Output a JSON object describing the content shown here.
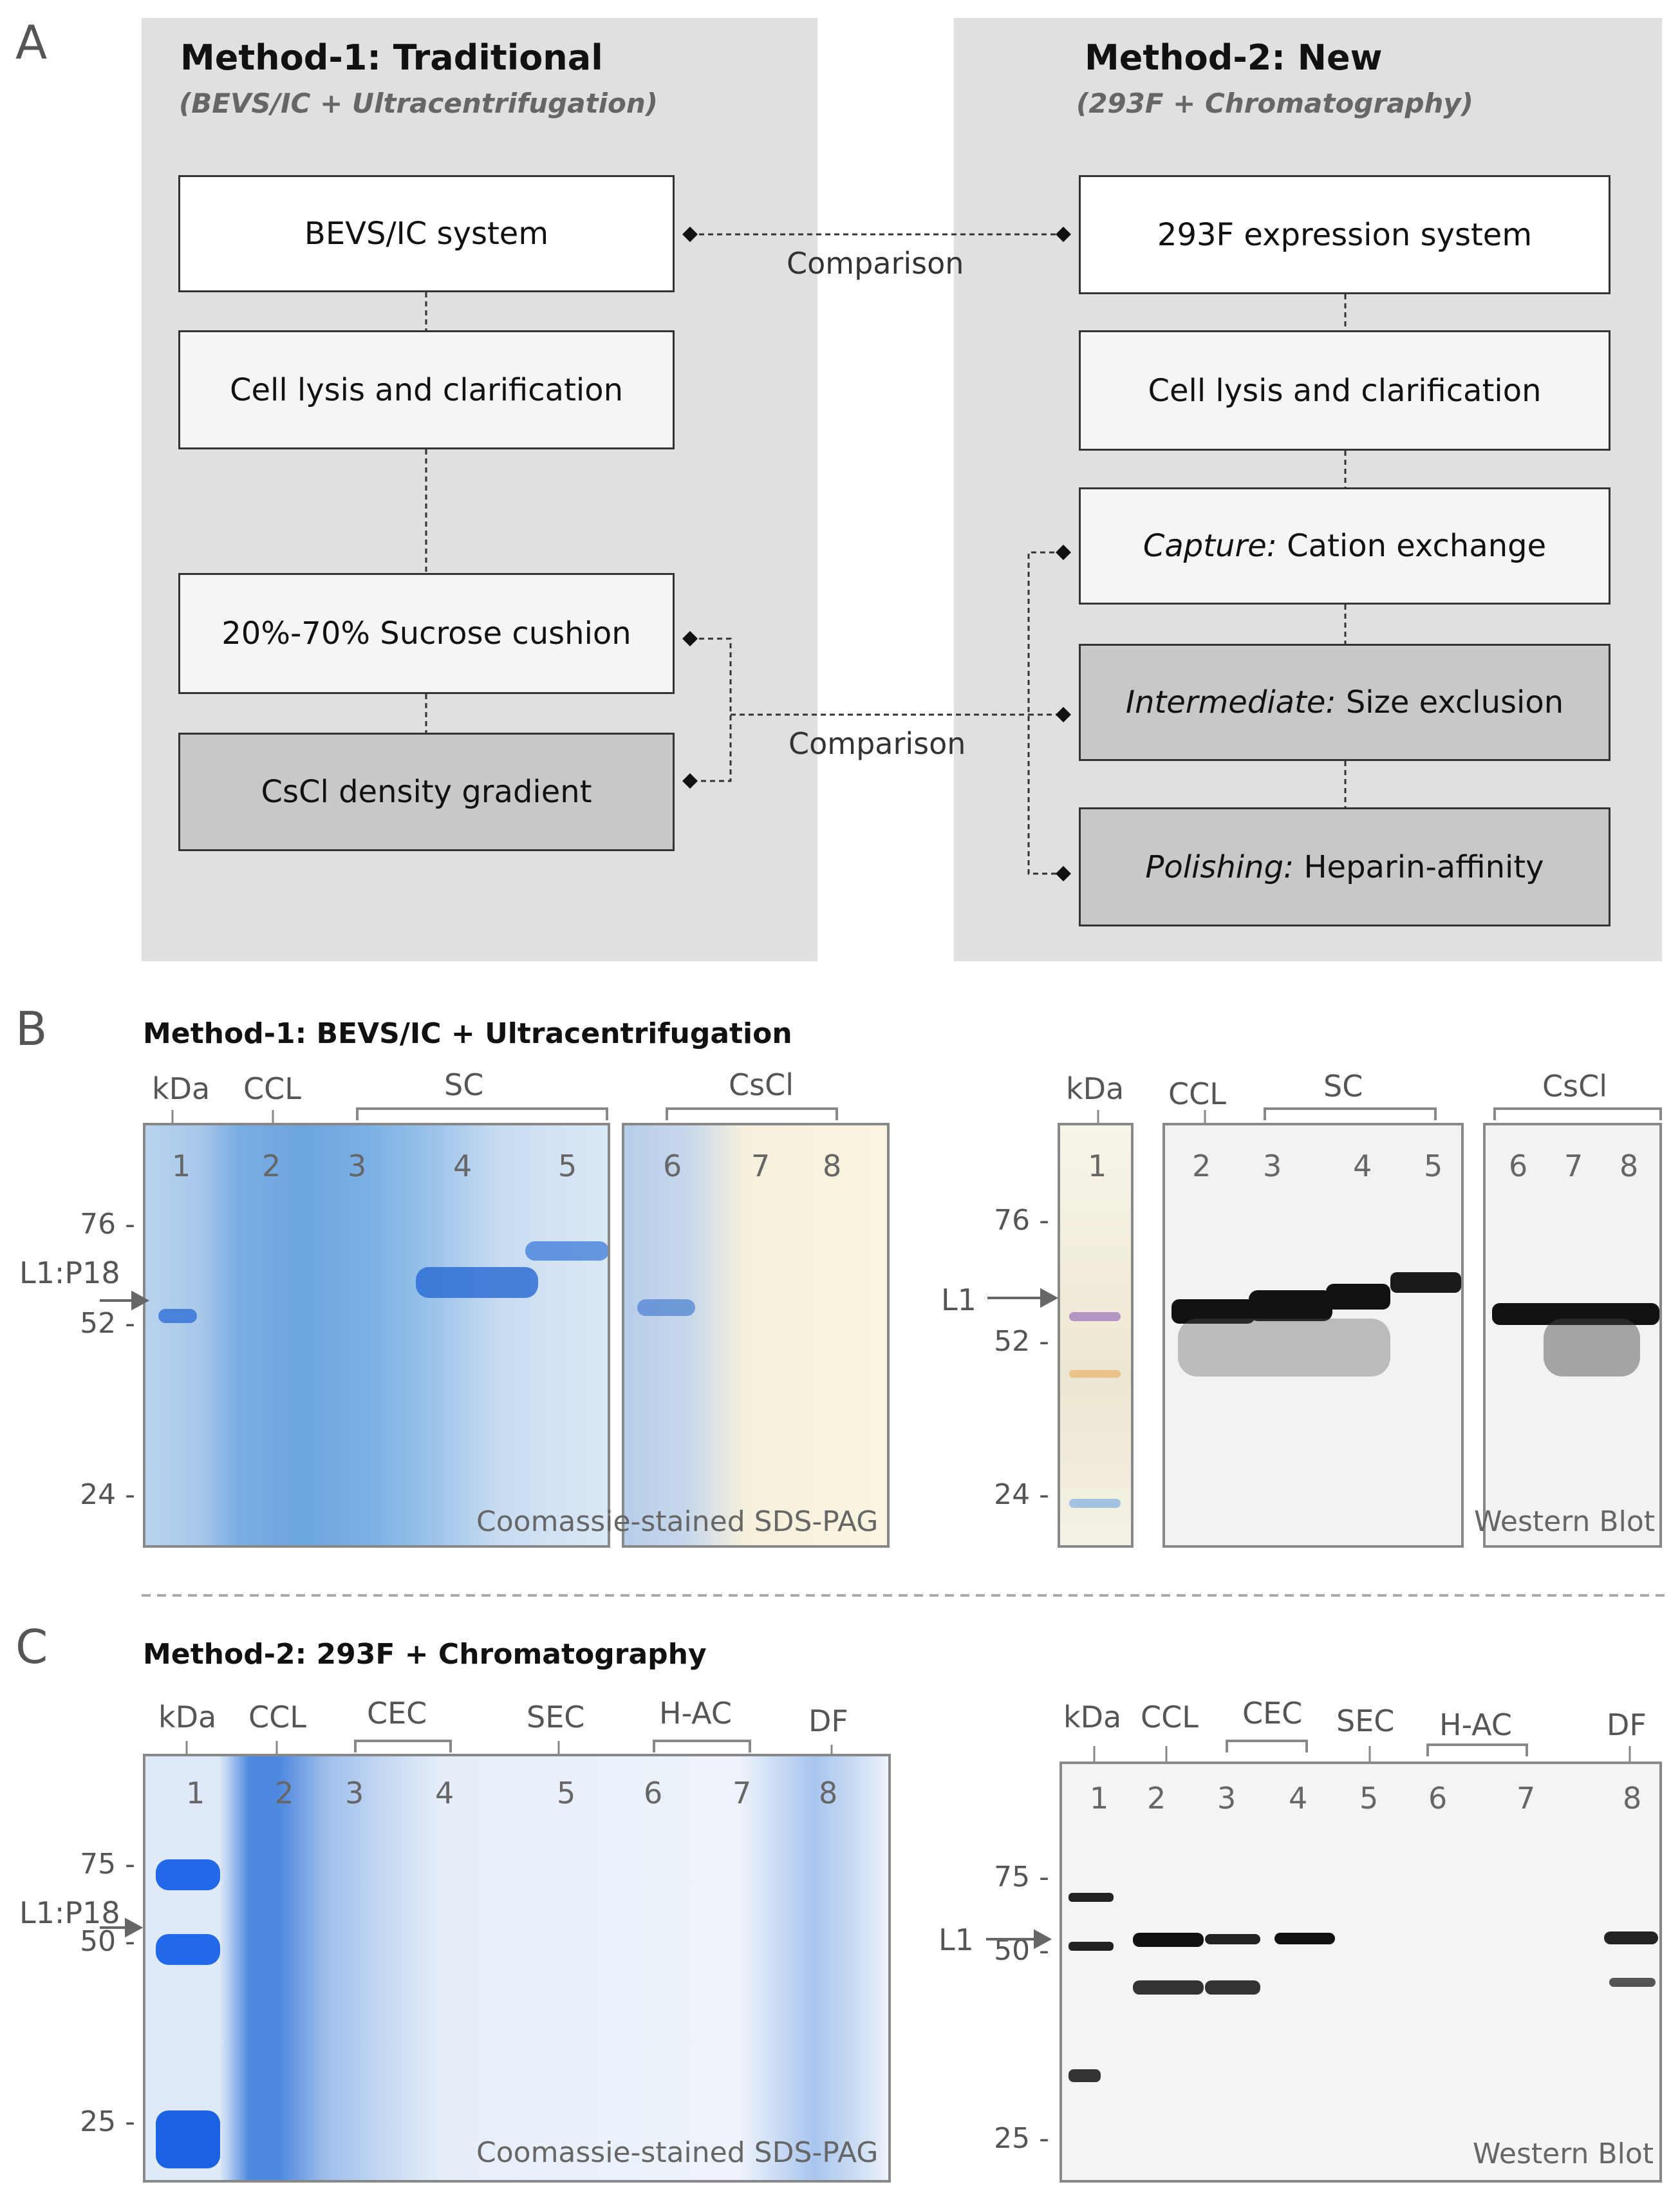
{
  "panelA": {
    "letter": "A",
    "method1": {
      "title": "Method-1: Traditional",
      "subtitle": "(BEVS/IC + Ultracentrifugation)",
      "steps": [
        "BEVS/IC system",
        "Cell lysis and clarification",
        "20%-70% Sucrose cushion",
        "CsCl density gradient"
      ]
    },
    "method2": {
      "title": "Method-2: New",
      "subtitle": "(293F + Chromatography)",
      "steps": [
        {
          "prefix": "",
          "text": "293F expression system"
        },
        {
          "prefix": "",
          "text": "Cell lysis and clarification"
        },
        {
          "prefix": "Capture:",
          "text": " Cation exchange"
        },
        {
          "prefix": "Intermediate:",
          "text": " Size exclusion"
        },
        {
          "prefix": "Polishing:",
          "text": " Heparin-affinity"
        }
      ]
    },
    "comparison_labels": [
      "Comparison",
      "Comparison"
    ]
  },
  "panelB": {
    "letter": "B",
    "title": "Method-1: BEVS/IC + Ultracentrifugation",
    "coomassie": {
      "header_labels": [
        "kDa",
        "CCL",
        "SC",
        "CsCl"
      ],
      "lanes": [
        "1",
        "2",
        "3",
        "4",
        "5",
        "6",
        "7",
        "8"
      ],
      "mw_ticks": [
        "76 -",
        "52 -",
        "24 -"
      ],
      "band_marker": "L1:P18",
      "footnote": "Coomassie-stained SDS-PAG"
    },
    "western": {
      "header_labels": [
        "kDa",
        "CCL",
        "SC",
        "CsCl"
      ],
      "lanes": [
        "1",
        "2",
        "3",
        "4",
        "5",
        "6",
        "7",
        "8"
      ],
      "mw_ticks": [
        "76 -",
        "52 -",
        "24 -"
      ],
      "band_marker": "L1",
      "footnote": "Western Blot"
    }
  },
  "panelC": {
    "letter": "C",
    "title": "Method-2: 293F + Chromatography",
    "coomassie": {
      "header_labels": [
        "kDa",
        "CCL",
        "CEC",
        "SEC",
        "H-AC",
        "DF"
      ],
      "lanes": [
        "1",
        "2",
        "3",
        "4",
        "5",
        "6",
        "7",
        "8"
      ],
      "mw_ticks": [
        "75 -",
        "50 -",
        "25 -"
      ],
      "band_marker": "L1:P18",
      "footnote": "Coomassie-stained SDS-PAG"
    },
    "western": {
      "header_labels": [
        "kDa",
        "CCL",
        "CEC",
        "SEC",
        "H-AC",
        "DF"
      ],
      "lanes": [
        "1",
        "2",
        "3",
        "4",
        "5",
        "6",
        "7",
        "8"
      ],
      "mw_ticks": [
        "75 -",
        "50 -",
        "25 -"
      ],
      "band_marker": "L1",
      "footnote": "Western Blot"
    }
  },
  "colors": {
    "method_bg": "#e0e0e0",
    "coomassie_blue": "#2e6fd6",
    "western_black": "#111111",
    "dark_box": "#c8c8c8"
  }
}
